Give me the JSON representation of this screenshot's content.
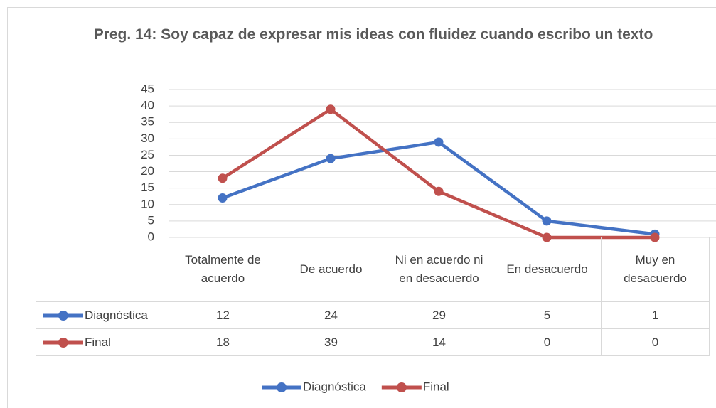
{
  "chart_data": {
    "type": "line",
    "title": "Preg. 14: Soy capaz de expresar mis ideas con fluidez cuando escribo un texto",
    "categories": [
      "Totalmente de acuerdo",
      "De acuerdo",
      "Ni en acuerdo ni en desacuerdo",
      "En desacuerdo",
      "Muy en desacuerdo"
    ],
    "series": [
      {
        "name": "Diagnóstica",
        "color": "#4472c4",
        "values": [
          12,
          24,
          29,
          5,
          1
        ]
      },
      {
        "name": "Final",
        "color": "#c0504d",
        "values": [
          18,
          39,
          14,
          0,
          0
        ]
      }
    ],
    "ylim": [
      0,
      45
    ],
    "yticks": [
      0,
      5,
      10,
      15,
      20,
      25,
      30,
      35,
      40,
      45
    ],
    "grid": true,
    "legend": "bottom",
    "data_table": true
  }
}
